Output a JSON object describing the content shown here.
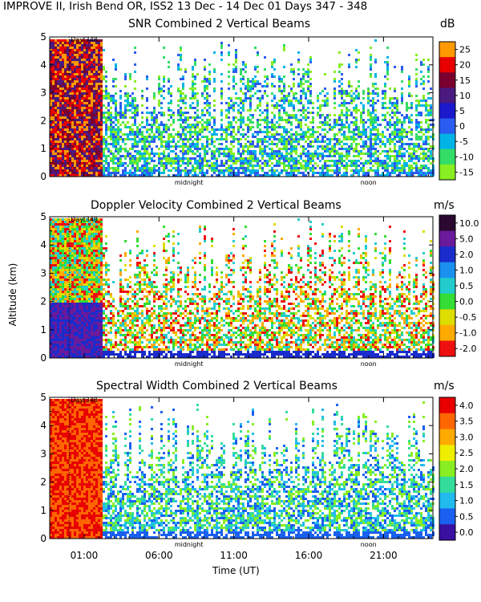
{
  "page_title": "IMPROVE II,  Irish Bend OR, ISS2  13 Dec - 14 Dec 01 Days 347 - 348",
  "shared": {
    "ylabel": "Altitude (km)",
    "xlabel": "Time (UT)",
    "x_tick_labels": [
      "01:00",
      "06:00",
      "11:00",
      "16:00",
      "21:00"
    ],
    "x_ticks_hours": [
      1,
      6,
      11,
      16,
      21
    ],
    "x_range_hours": [
      -1.3,
      24.3
    ],
    "y_ticks": [
      0,
      1,
      2,
      3,
      4,
      5
    ],
    "y_range": [
      0,
      5
    ],
    "annotations": {
      "day": "Day 348",
      "midnight": "midnight",
      "noon": "noon"
    },
    "annotation_hours": {
      "day": 0.0,
      "midnight": 8.0,
      "noon": 20.0
    }
  },
  "chart_data": [
    {
      "type": "heatmap",
      "title": "SNR Combined 2 Vertical Beams",
      "unit": "dB",
      "colorbar_ticks": [
        "25",
        "20",
        "15",
        "10",
        "5",
        "0",
        "-5",
        "-10",
        "-15"
      ],
      "colorbar_colors": [
        "#ff9900",
        "#e80000",
        "#7a0030",
        "#4a1a80",
        "#1a1acc",
        "#2b5cf0",
        "#00b4e6",
        "#33dd66",
        "#88ee22"
      ],
      "xlabel": "Time (UT)",
      "ylabel": "Altitude (km)",
      "ylim": [
        0,
        5
      ]
    },
    {
      "type": "heatmap",
      "title": "Doppler Velocity Combined 2 Vertical Beams",
      "unit": "m/s",
      "colorbar_ticks": [
        "10.0",
        "5.0",
        "2.0",
        "1.0",
        "0.5",
        "0.0",
        "-0.5",
        "-1.0",
        "-2.0"
      ],
      "colorbar_colors": [
        "#2a0830",
        "#6a1a9a",
        "#1a2ccc",
        "#1a90f0",
        "#22cccc",
        "#33dd33",
        "#dddd00",
        "#ffaa00",
        "#ee1010"
      ],
      "xlabel": "Time (UT)",
      "ylabel": "Altitude (km)",
      "ylim": [
        0,
        5
      ]
    },
    {
      "type": "heatmap",
      "title": "Spectral Width Combined 2 Vertical Beams",
      "unit": "m/s",
      "colorbar_ticks": [
        "4.0",
        "3.5",
        "3.0",
        "2.5",
        "2.0",
        "1.5",
        "1.0",
        "0.5",
        "0.0"
      ],
      "colorbar_colors": [
        "#e80000",
        "#ff6600",
        "#ffaa00",
        "#eeee00",
        "#88ee22",
        "#33dd99",
        "#22bbee",
        "#1a60f0",
        "#3a10a0"
      ],
      "xlabel": "Time (UT)",
      "ylabel": "Altitude (km)",
      "ylim": [
        0,
        5
      ]
    }
  ]
}
